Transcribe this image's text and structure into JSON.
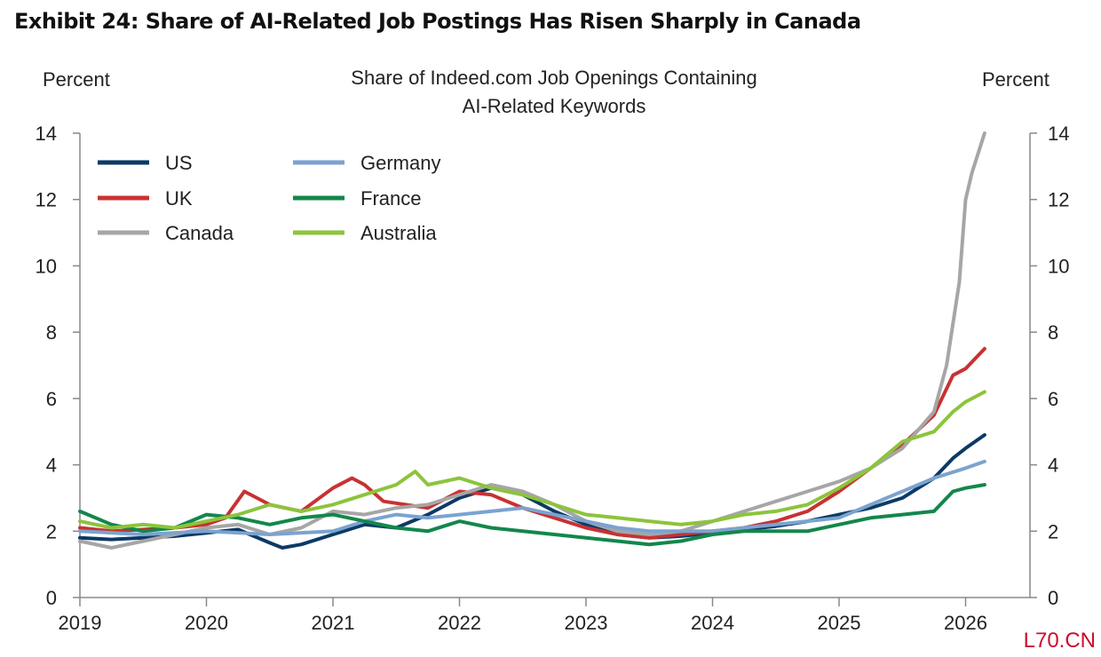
{
  "title": "Exhibit 24: Share of AI-Related Job Postings Has Risen Sharply in Canada",
  "watermark": "L70.CN",
  "chart_data": {
    "type": "line",
    "subtitle": [
      "Share of Indeed.com Job Openings Containing",
      "AI-Related Keywords"
    ],
    "ylabel_left": "Percent",
    "ylabel_right": "Percent",
    "ylim": [
      0,
      14
    ],
    "yticks": [
      0,
      2,
      4,
      6,
      8,
      10,
      12,
      14
    ],
    "xlim": [
      2019,
      2026.5
    ],
    "xticks": [
      2019,
      2020,
      2021,
      2022,
      2023,
      2024,
      2025,
      2026
    ],
    "grid": false,
    "legend_position": "top-left",
    "series": [
      {
        "name": "US",
        "color": "#0b3a66",
        "x": [
          2019,
          2019.25,
          2019.5,
          2019.75,
          2020,
          2020.25,
          2020.5,
          2020.6,
          2020.75,
          2021,
          2021.25,
          2021.5,
          2021.75,
          2022,
          2022.25,
          2022.5,
          2022.75,
          2023,
          2023.25,
          2023.5,
          2023.75,
          2024,
          2024.25,
          2024.5,
          2024.75,
          2025,
          2025.25,
          2025.5,
          2025.75,
          2025.9,
          2026,
          2026.15
        ],
        "y": [
          1.8,
          1.75,
          1.8,
          1.85,
          1.95,
          2.05,
          1.65,
          1.5,
          1.6,
          1.9,
          2.2,
          2.1,
          2.5,
          3.0,
          3.3,
          3.1,
          2.6,
          2.2,
          1.9,
          1.8,
          1.85,
          1.95,
          2.05,
          2.15,
          2.3,
          2.5,
          2.7,
          3.0,
          3.6,
          4.2,
          4.5,
          4.9
        ]
      },
      {
        "name": "UK",
        "color": "#c83232",
        "x": [
          2019,
          2019.25,
          2019.5,
          2019.75,
          2020,
          2020.15,
          2020.3,
          2020.5,
          2020.75,
          2021,
          2021.15,
          2021.25,
          2021.4,
          2021.75,
          2022,
          2022.25,
          2022.5,
          2022.75,
          2023,
          2023.25,
          2023.5,
          2023.75,
          2024,
          2024.25,
          2024.5,
          2024.75,
          2025,
          2025.25,
          2025.5,
          2025.75,
          2025.9,
          2026,
          2026.15
        ],
        "y": [
          2.1,
          2.0,
          2.05,
          2.1,
          2.2,
          2.4,
          3.2,
          2.8,
          2.6,
          3.3,
          3.6,
          3.4,
          2.9,
          2.7,
          3.2,
          3.1,
          2.7,
          2.4,
          2.1,
          1.9,
          1.8,
          1.9,
          2.0,
          2.1,
          2.3,
          2.6,
          3.2,
          3.9,
          4.6,
          5.5,
          6.7,
          6.9,
          7.5
        ]
      },
      {
        "name": "Canada",
        "color": "#a6a6a6",
        "x": [
          2019,
          2019.25,
          2019.5,
          2019.75,
          2020,
          2020.25,
          2020.5,
          2020.75,
          2021,
          2021.25,
          2021.5,
          2021.75,
          2022,
          2022.25,
          2022.5,
          2022.75,
          2023,
          2023.25,
          2023.5,
          2023.75,
          2024,
          2024.25,
          2024.5,
          2024.75,
          2025,
          2025.25,
          2025.5,
          2025.75,
          2025.85,
          2025.95,
          2026,
          2026.05,
          2026.15
        ],
        "y": [
          1.7,
          1.5,
          1.7,
          1.9,
          2.1,
          2.2,
          1.9,
          2.1,
          2.6,
          2.5,
          2.7,
          2.8,
          3.1,
          3.4,
          3.2,
          2.8,
          2.3,
          2.0,
          1.9,
          2.0,
          2.3,
          2.6,
          2.9,
          3.2,
          3.5,
          3.9,
          4.5,
          5.6,
          7.0,
          9.5,
          12.0,
          12.8,
          14.0
        ]
      },
      {
        "name": "Germany",
        "color": "#7ba3d0",
        "x": [
          2019,
          2019.5,
          2020,
          2020.5,
          2021,
          2021.25,
          2021.5,
          2021.75,
          2022,
          2022.25,
          2022.5,
          2022.75,
          2023,
          2023.25,
          2023.5,
          2023.75,
          2024,
          2024.5,
          2025,
          2025.25,
          2025.5,
          2025.75,
          2026,
          2026.15
        ],
        "y": [
          2.0,
          1.9,
          2.0,
          1.9,
          2.0,
          2.3,
          2.5,
          2.4,
          2.5,
          2.6,
          2.7,
          2.5,
          2.3,
          2.1,
          2.0,
          2.0,
          2.0,
          2.2,
          2.4,
          2.8,
          3.2,
          3.6,
          3.9,
          4.1
        ]
      },
      {
        "name": "France",
        "color": "#13874b",
        "x": [
          2019,
          2019.25,
          2019.5,
          2019.75,
          2020,
          2020.25,
          2020.5,
          2020.75,
          2021,
          2021.25,
          2021.5,
          2021.75,
          2022,
          2022.25,
          2022.5,
          2022.75,
          2023,
          2023.25,
          2023.5,
          2023.75,
          2024,
          2024.25,
          2024.5,
          2024.75,
          2025,
          2025.25,
          2025.5,
          2025.75,
          2025.9,
          2026,
          2026.15
        ],
        "y": [
          2.6,
          2.2,
          2.0,
          2.1,
          2.5,
          2.4,
          2.2,
          2.4,
          2.5,
          2.3,
          2.1,
          2.0,
          2.3,
          2.1,
          2.0,
          1.9,
          1.8,
          1.7,
          1.6,
          1.7,
          1.9,
          2.0,
          2.0,
          2.0,
          2.2,
          2.4,
          2.5,
          2.6,
          3.2,
          3.3,
          3.4
        ]
      },
      {
        "name": "Australia",
        "color": "#8cc43c",
        "x": [
          2019,
          2019.25,
          2019.5,
          2019.75,
          2020,
          2020.25,
          2020.5,
          2020.75,
          2021,
          2021.25,
          2021.5,
          2021.65,
          2021.75,
          2022,
          2022.25,
          2022.5,
          2022.75,
          2023,
          2023.25,
          2023.5,
          2023.75,
          2024,
          2024.25,
          2024.5,
          2024.75,
          2025,
          2025.25,
          2025.5,
          2025.75,
          2025.9,
          2026,
          2026.15
        ],
        "y": [
          2.3,
          2.1,
          2.2,
          2.1,
          2.3,
          2.5,
          2.8,
          2.6,
          2.8,
          3.1,
          3.4,
          3.8,
          3.4,
          3.6,
          3.3,
          3.1,
          2.8,
          2.5,
          2.4,
          2.3,
          2.2,
          2.3,
          2.5,
          2.6,
          2.8,
          3.3,
          3.9,
          4.7,
          5.0,
          5.6,
          5.9,
          6.2
        ]
      }
    ]
  }
}
